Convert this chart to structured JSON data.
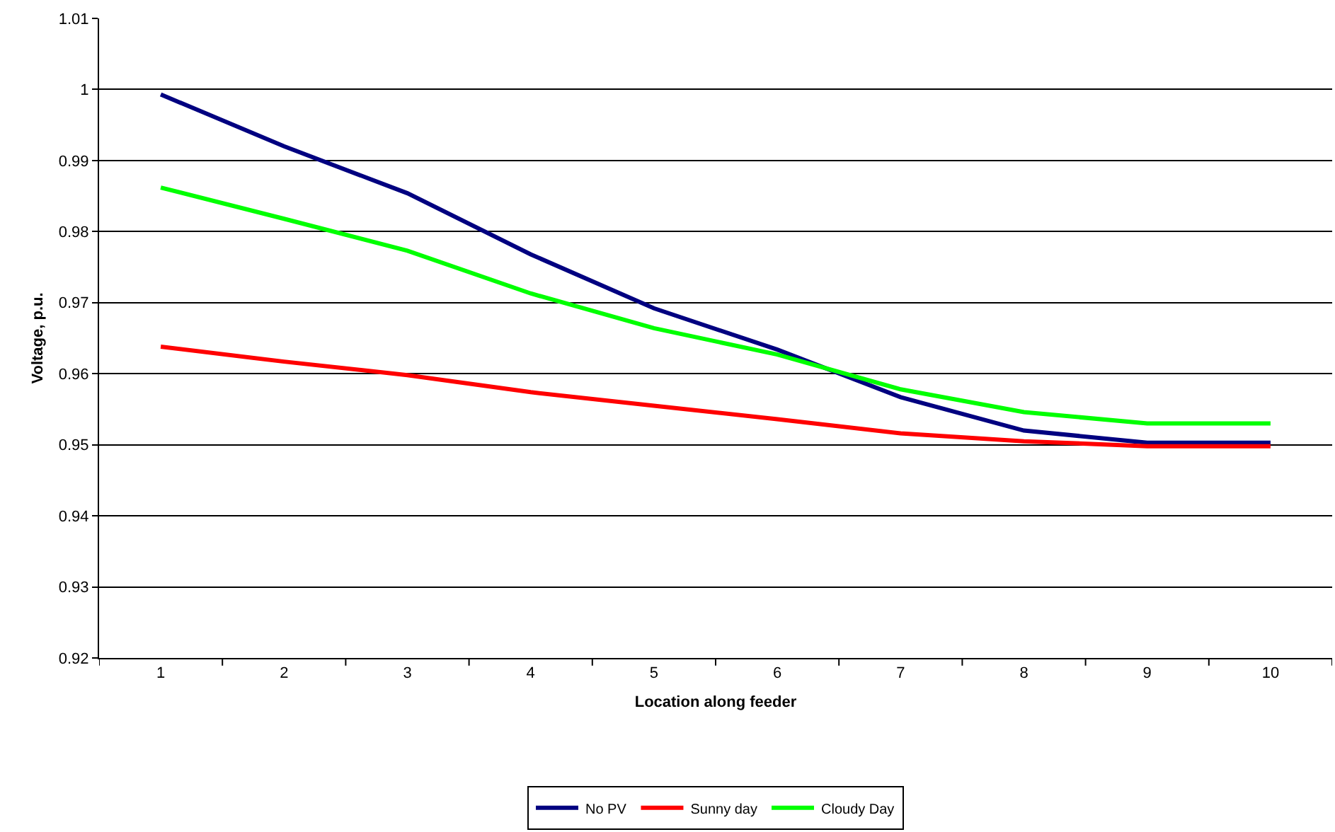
{
  "chart_data": {
    "type": "line",
    "xlabel": "Location along feeder",
    "ylabel": "Voltage, p.u.",
    "categories": [
      "1",
      "2",
      "3",
      "4",
      "5",
      "6",
      "7",
      "8",
      "9",
      "10"
    ],
    "series": [
      {
        "name": "No PV",
        "color": "#000080",
        "values": [
          0.9993,
          0.992,
          0.9854,
          0.9768,
          0.9692,
          0.9634,
          0.9567,
          0.952,
          0.9503,
          0.9503
        ]
      },
      {
        "name": "Sunny day",
        "color": "#ff0000",
        "values": [
          0.9638,
          0.9617,
          0.9598,
          0.9574,
          0.9555,
          0.9536,
          0.9516,
          0.9505,
          0.9498,
          0.9498
        ]
      },
      {
        "name": "Cloudy Day",
        "color": "#00ff00",
        "values": [
          0.9862,
          0.9818,
          0.9773,
          0.9713,
          0.9664,
          0.9627,
          0.9578,
          0.9546,
          0.953,
          0.953
        ]
      }
    ],
    "ylim": [
      0.92,
      1.01
    ],
    "yticks": [
      0.92,
      0.93,
      0.94,
      0.95,
      0.96,
      0.97,
      0.98,
      0.99,
      {
        "value": 1,
        "label": "1"
      },
      1.01
    ],
    "grid": "y",
    "legend": "bottom",
    "marker": "none",
    "line_style": "solid"
  }
}
